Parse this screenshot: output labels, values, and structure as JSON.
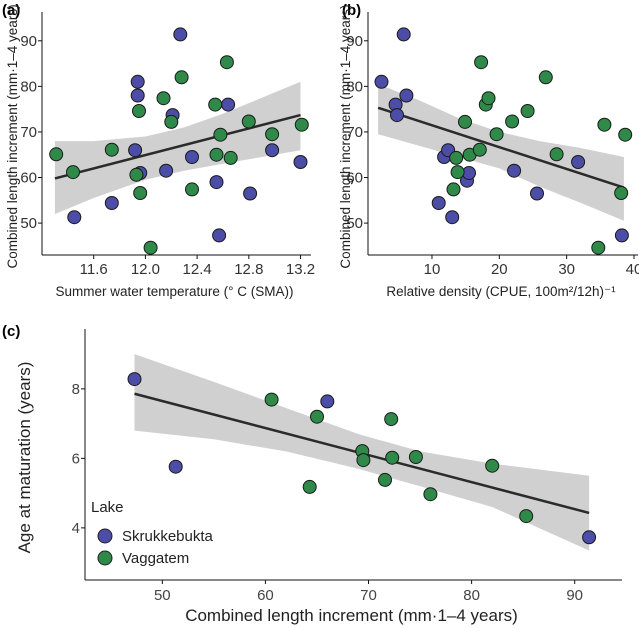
{
  "colors": {
    "Skrukkebukta": "#4b4da6",
    "Vaggatem": "#2f8a4a",
    "ribbon": "#c8c8c8",
    "line": "#2b2b2b"
  },
  "legend": {
    "title": "Lake",
    "items": [
      "Skrukkebukta",
      "Vaggatem"
    ]
  },
  "chart_data": [
    {
      "panel_label": "(a)",
      "type": "scatter",
      "xlabel": "Summer water temperature (° C (SMA))",
      "ylabel": "Combined length increment (mm·1–4 years)",
      "xlim": [
        11.2,
        13.25
      ],
      "ylim": [
        43,
        95
      ],
      "xticks": [
        "11.6",
        "12.0",
        "12.4",
        "12.8",
        "13.2"
      ],
      "yticks": [
        "50",
        "60",
        "70",
        "80",
        "90"
      ],
      "fit": {
        "x": [
          11.3,
          13.2
        ],
        "y": [
          59.8,
          73.7
        ]
      },
      "ribbon": {
        "x": [
          11.3,
          11.6,
          12.0,
          12.3,
          12.6,
          12.9,
          13.2
        ],
        "lower": [
          52.0,
          55.5,
          59.5,
          61.5,
          63.0,
          64.5,
          66.0
        ],
        "upper": [
          68.0,
          68.0,
          69.0,
          71.0,
          74.0,
          77.5,
          81.0
        ]
      },
      "series": [
        {
          "name": "Skrukkebukta",
          "x": [
            11.45,
            11.74,
            11.92,
            11.94,
            11.94,
            11.96,
            12.16,
            12.27,
            12.21,
            12.36,
            12.55,
            12.57,
            12.64,
            12.81,
            12.98,
            13.2
          ],
          "y": [
            51.3,
            54.4,
            66.0,
            81.0,
            78.0,
            61.0,
            61.5,
            91.4,
            73.7,
            64.5,
            59.0,
            47.3,
            76.0,
            56.5,
            66.0,
            63.4
          ]
        },
        {
          "name": "Vaggatem",
          "x": [
            11.31,
            11.44,
            11.74,
            11.93,
            11.95,
            11.96,
            12.04,
            12.14,
            12.2,
            12.28,
            12.36,
            12.54,
            12.55,
            12.58,
            12.63,
            12.66,
            12.8,
            12.98,
            13.21
          ],
          "y": [
            65.1,
            61.2,
            66.1,
            60.6,
            74.6,
            56.6,
            44.6,
            77.4,
            72.2,
            82.0,
            57.4,
            76.0,
            65.0,
            69.4,
            85.3,
            64.3,
            72.3,
            69.5,
            71.6
          ]
        }
      ]
    },
    {
      "panel_label": "(b)",
      "type": "scatter",
      "xlabel": "Relative density (CPUE, 100m²/12h)⁻¹",
      "ylabel": "Combined length increment (mm·1–4 years)",
      "xlim": [
        0.5,
        40
      ],
      "ylim": [
        43,
        95
      ],
      "xticks": [
        "10",
        "20",
        "30",
        "40"
      ],
      "yticks": [
        "50",
        "60",
        "70",
        "80",
        "90"
      ],
      "fit": {
        "x": [
          2,
          38.5
        ],
        "y": [
          75.3,
          57.8
        ]
      },
      "ribbon": {
        "x": [
          2,
          8,
          14,
          20,
          26,
          32,
          38.5
        ],
        "lower": [
          69.5,
          67.0,
          64.5,
          62.0,
          58.0,
          54.5,
          50.5
        ],
        "upper": [
          80.5,
          77.0,
          73.0,
          70.0,
          68.0,
          66.5,
          64.5
        ]
      },
      "series": [
        {
          "name": "Skrukkebukta",
          "x": [
            2.5,
            4.6,
            4.8,
            5.8,
            6.2,
            11.0,
            11.8,
            12.4,
            13.0,
            15.2,
            15.5,
            22.2,
            25.6,
            31.7,
            38.2
          ],
          "y": [
            81.0,
            76.0,
            73.7,
            91.4,
            78.0,
            54.4,
            64.5,
            66.0,
            51.3,
            59.3,
            61.0,
            61.5,
            56.5,
            63.4,
            47.3
          ]
        },
        {
          "name": "Vaggatem",
          "x": [
            13.2,
            13.6,
            13.8,
            14.9,
            15.6,
            17.1,
            17.3,
            18.0,
            18.4,
            19.6,
            21.9,
            24.2,
            26.9,
            28.5,
            34.7,
            35.6,
            38.1,
            38.7
          ],
          "y": [
            57.4,
            64.3,
            61.2,
            72.2,
            65.0,
            66.1,
            85.3,
            76.0,
            77.4,
            69.5,
            72.3,
            74.6,
            82.0,
            65.1,
            44.6,
            71.6,
            56.6,
            69.4
          ]
        }
      ]
    },
    {
      "panel_label": "(c)",
      "type": "scatter",
      "xlabel": "Combined length increment (mm·1–4 years)",
      "ylabel": "Age at maturation (years)",
      "xlim": [
        42.5,
        94.2
      ],
      "ylim": [
        2.5,
        9.55
      ],
      "xticks": [
        "50",
        "60",
        "70",
        "80",
        "90"
      ],
      "yticks": [
        "4",
        "6",
        "8"
      ],
      "fit": {
        "x": [
          47.3,
          91.4
        ],
        "y": [
          7.86,
          4.43
        ]
      },
      "ribbon": {
        "x": [
          47.3,
          55,
          62,
          69,
          75,
          82,
          91.4
        ],
        "lower": [
          6.8,
          6.55,
          6.2,
          5.7,
          5.2,
          4.6,
          3.35
        ],
        "upper": [
          9.0,
          8.2,
          7.45,
          6.7,
          6.2,
          5.85,
          5.5
        ]
      },
      "series": [
        {
          "name": "Skrukkebukta",
          "x": [
            47.3,
            51.3,
            66.0,
            91.4
          ],
          "y": [
            8.28,
            5.76,
            7.64,
            3.73
          ]
        },
        {
          "name": "Vaggatem",
          "x": [
            60.6,
            64.3,
            65.0,
            69.4,
            69.5,
            71.6,
            72.2,
            72.3,
            74.6,
            76.0,
            82.0,
            85.3
          ],
          "y": [
            7.69,
            5.18,
            7.2,
            6.21,
            5.95,
            5.38,
            7.13,
            6.02,
            6.04,
            4.97,
            5.79,
            4.34
          ]
        }
      ]
    }
  ]
}
